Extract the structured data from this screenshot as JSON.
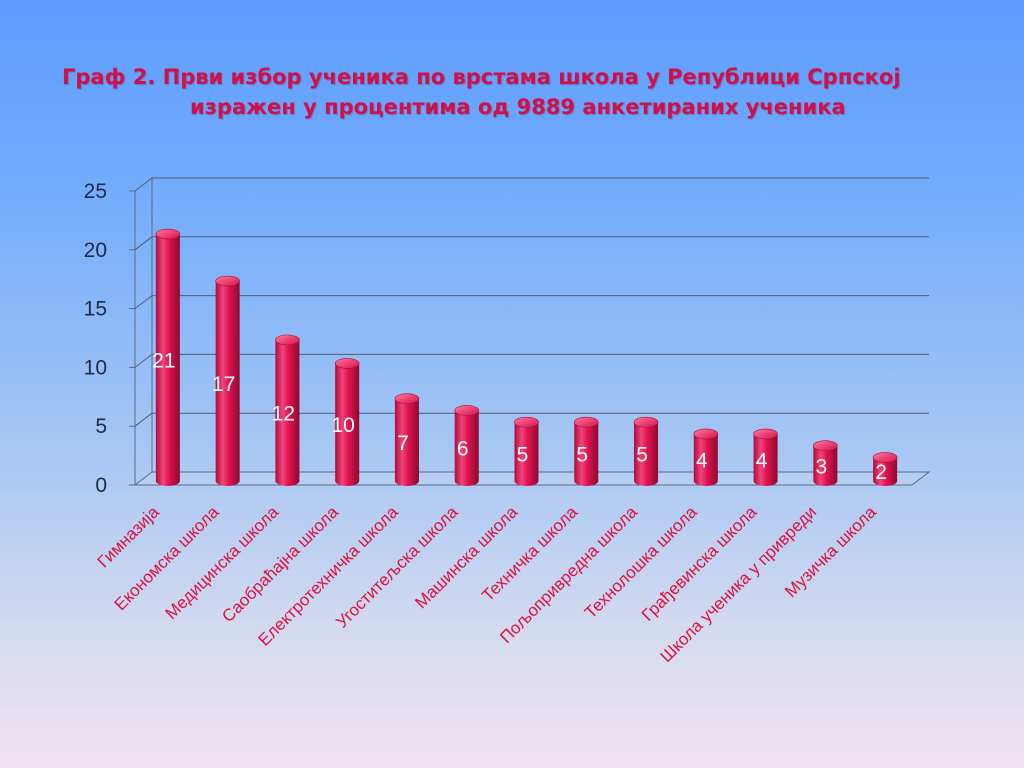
{
  "title": {
    "line1": "Граф 2. Први избор ученика по врстама школа у Републици Српској",
    "line2": "изражен у процентима од 9889 анкетираних ученика"
  },
  "colors": {
    "bar": "#d8104a",
    "bar_light": "#f2507e",
    "bar_dark": "#8e0a30",
    "title": "#d01048",
    "xlabel": "#e0103d"
  },
  "chart_data": {
    "type": "bar",
    "style": "3d-cylinder",
    "title": "Граф 2. Први избор ученика по врстама школа у Републици Српској изражен у процентима од 9889 анкетираних ученика",
    "xlabel": "",
    "ylabel": "",
    "ylim": [
      0,
      25
    ],
    "yticks": [
      0,
      5,
      10,
      15,
      20,
      25
    ],
    "grid": true,
    "legend": "none",
    "categories": [
      "Гимназија",
      "Економска школа",
      "Медицинска школа",
      "Саобраћајна школа",
      "Електротехничка школа",
      "Угоститељска школа",
      "Машинска школа",
      "Техничка школа",
      "Пољопривредна школа",
      "Технолошка школа",
      "Грађевинска школа",
      "Школа ученика у привреди",
      "Музичка школа"
    ],
    "values": [
      21,
      17,
      12,
      10,
      7,
      6,
      5,
      5,
      5,
      4,
      4,
      3,
      2
    ],
    "data_labels": [
      "21",
      "17",
      "12",
      "10",
      "7",
      "6",
      "5",
      "5",
      "5",
      "4",
      "4",
      "3",
      "2"
    ]
  }
}
